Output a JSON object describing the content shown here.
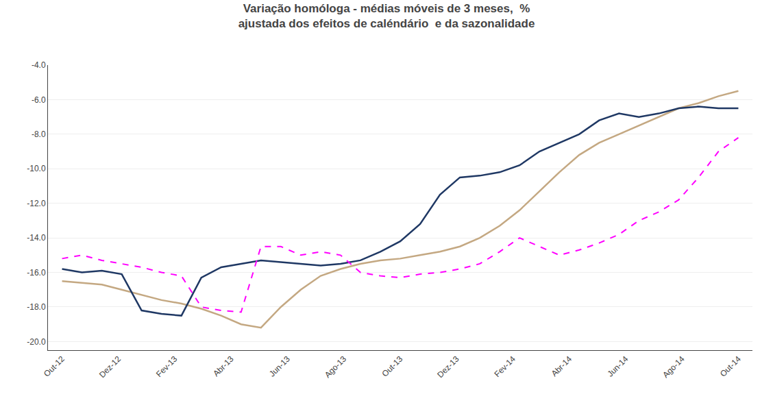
{
  "chart_data": {
    "type": "line",
    "title": "Variação homóloga - médias móveis de 3 meses,  %",
    "subtitle": "ajustada dos efeitos de caléndário  e da sazonalidade",
    "x": [
      0,
      0.705882,
      1.411765,
      2.117647,
      2.823529,
      3.529412,
      4.235294,
      4.941176,
      5.647059,
      6.352941,
      7.058824,
      7.764706,
      8.470588,
      9.176471,
      9.882353,
      10.588235,
      11.294118,
      12,
      12.705882,
      13.411765,
      14.117647,
      14.823529,
      15.529412,
      16.235294,
      16.941176,
      17.647059,
      18.352941,
      19.058824,
      19.764706,
      20.470588,
      21.176471,
      21.882353,
      22.588235,
      23.294118,
      24
    ],
    "xlim": [
      -0.5,
      24.5
    ],
    "xticks": [
      {
        "value": 0,
        "label": "Out-12"
      },
      {
        "value": 2,
        "label": "Dez-12"
      },
      {
        "value": 4,
        "label": "Fev-13"
      },
      {
        "value": 6,
        "label": "Abr-13"
      },
      {
        "value": 8,
        "label": "Jun-13"
      },
      {
        "value": 10,
        "label": "Ago-13"
      },
      {
        "value": 12,
        "label": "Out-13"
      },
      {
        "value": 14,
        "label": "Dez-13"
      },
      {
        "value": 16,
        "label": "Fev-14"
      },
      {
        "value": 18,
        "label": "Abr-14"
      },
      {
        "value": 20,
        "label": "Jun-14"
      },
      {
        "value": 22,
        "label": "Ago-14"
      },
      {
        "value": 24,
        "label": "Out-14"
      }
    ],
    "ylim": [
      -20.5,
      -4.0
    ],
    "yticks": [
      {
        "value": -20.0,
        "label": "-20.0"
      },
      {
        "value": -18.0,
        "label": "-18.0"
      },
      {
        "value": -16.0,
        "label": "-16.0"
      },
      {
        "value": -14.0,
        "label": "-14.0"
      },
      {
        "value": -12.0,
        "label": "-12.0"
      },
      {
        "value": -10.0,
        "label": "-10.0"
      },
      {
        "value": -8.0,
        "label": "-8.0"
      },
      {
        "value": -6.0,
        "label": "-6.0"
      },
      {
        "value": -4.0,
        "label": "-4.0"
      }
    ],
    "grid": "y",
    "series": [
      {
        "color": "#C4A882",
        "line_style": "solid",
        "values": [
          -16.5,
          -16.6,
          -16.7,
          -17.0,
          -17.3,
          -17.6,
          -17.8,
          -18.1,
          -18.5,
          -19.0,
          -19.2,
          -18.0,
          -17.0,
          -16.2,
          -15.8,
          -15.5,
          -15.3,
          -15.2,
          -15.0,
          -14.8,
          -14.5,
          -14.0,
          -13.3,
          -12.4,
          -11.3,
          -10.2,
          -9.2,
          -8.5,
          -8.0,
          -7.5,
          -7.0,
          -6.5,
          -6.2,
          -5.8,
          -5.5
        ]
      },
      {
        "color": "#1F3864",
        "line_style": "solid",
        "values": [
          -15.8,
          -16.0,
          -15.9,
          -16.1,
          -18.2,
          -18.4,
          -18.5,
          -16.3,
          -15.7,
          -15.5,
          -15.3,
          -15.4,
          -15.5,
          -15.6,
          -15.5,
          -15.3,
          -14.8,
          -14.2,
          -13.2,
          -11.5,
          -10.5,
          -10.4,
          -10.2,
          -9.8,
          -9.0,
          -8.5,
          -8.0,
          -7.2,
          -6.8,
          -7.0,
          -6.8,
          -6.5,
          -6.4,
          -6.5,
          -6.5
        ]
      },
      {
        "color": "#FF00FF",
        "line_style": "dashed",
        "values": [
          -15.2,
          -15.0,
          -15.3,
          -15.5,
          -15.7,
          -16.0,
          -16.2,
          -18.0,
          -18.2,
          -18.3,
          -14.5,
          -14.5,
          -15.0,
          -14.8,
          -15.0,
          -16.0,
          -16.2,
          -16.3,
          -16.1,
          -16.0,
          -15.8,
          -15.5,
          -14.8,
          -14.0,
          -14.5,
          -15.0,
          -14.7,
          -14.3,
          -13.8,
          -13.0,
          -12.5,
          -11.8,
          -10.5,
          -9.0,
          -8.2
        ]
      }
    ]
  }
}
